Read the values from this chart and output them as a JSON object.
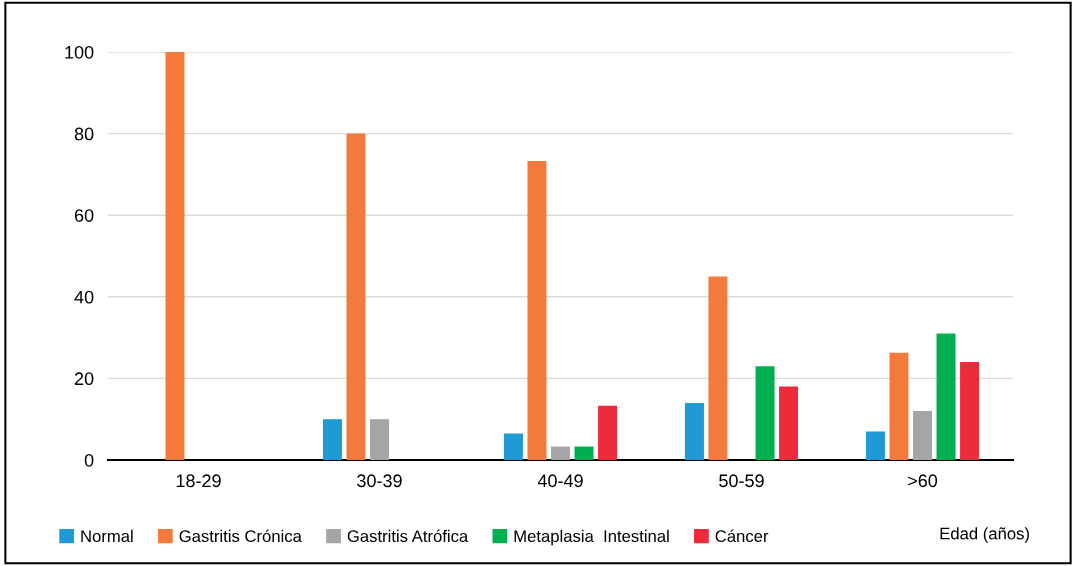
{
  "chart_data": {
    "type": "bar",
    "xlabel": "Edad (años)",
    "categories": [
      "18-29",
      "30-39",
      "40-49",
      "50-59",
      ">60"
    ],
    "series": [
      {
        "name": "Normal",
        "color": "#1f9ad6",
        "values": [
          null,
          10,
          6.5,
          14,
          7
        ]
      },
      {
        "name": "Gastritis Crónica",
        "color": "#f47a3c",
        "values": [
          100,
          80,
          73.3,
          45,
          26.3
        ]
      },
      {
        "name": "Gastritis Atrófica",
        "color": "#a5a5a5",
        "values": [
          null,
          10,
          3.3,
          null,
          12
        ]
      },
      {
        "name": "Metaplasia  Intestinal",
        "color": "#00b050",
        "values": [
          null,
          null,
          3.3,
          23,
          31
        ]
      },
      {
        "name": "Cáncer",
        "color": "#ee2b3b",
        "values": [
          null,
          null,
          13.3,
          18,
          24
        ]
      }
    ],
    "ylim": [
      0,
      100
    ],
    "yticks": [
      0,
      20,
      40,
      60,
      80,
      100
    ],
    "grid": "y",
    "legend": "bottom left"
  }
}
